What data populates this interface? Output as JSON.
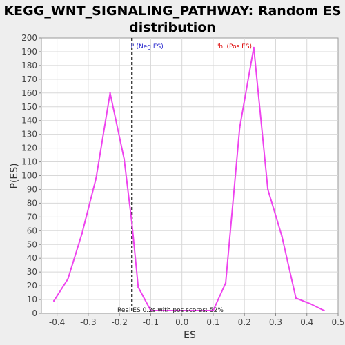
{
  "chart_data": {
    "type": "line",
    "title_line1": "KEGG_WNT_SIGNALING_PATHWAY: Random ES",
    "title_line2": "distribution",
    "xlabel": "ES",
    "ylabel": "P(ES)",
    "xlim": [
      -0.45,
      0.5
    ],
    "ylim": [
      0,
      200
    ],
    "x_ticks": [
      "-0.4",
      "-0.3",
      "-0.2",
      "-0.1",
      "0.0",
      "0.1",
      "0.2",
      "0.3",
      "0.4",
      "0.5"
    ],
    "y_ticks": [
      "0",
      "10",
      "20",
      "30",
      "40",
      "50",
      "60",
      "70",
      "80",
      "90",
      "100",
      "110",
      "120",
      "130",
      "140",
      "150",
      "160",
      "170",
      "180",
      "190",
      "200"
    ],
    "grid": true,
    "series": [
      {
        "color": "#ee44ee",
        "x": [
          -0.41,
          -0.365,
          -0.32,
          -0.275,
          -0.23,
          -0.185,
          -0.16,
          -0.14,
          -0.1,
          0.1,
          0.14,
          0.185,
          0.23,
          0.275,
          0.32,
          0.365,
          0.41,
          0.455
        ],
        "y": [
          9,
          25,
          58,
          98,
          160,
          112,
          65,
          19,
          2,
          2,
          22,
          135,
          193,
          90,
          56,
          11,
          7,
          2
        ]
      }
    ],
    "real_es": {
      "x": -0.16,
      "color": "#000000"
    },
    "annotations": {
      "neg_label": "'l' (Neg ES)",
      "neg_color": "#2222cc",
      "pos_label": "'h' (Pos ES)",
      "pos_color": "#dd0000",
      "bottom_text": "Real ES 0.2s with pos scores: 52%"
    }
  }
}
